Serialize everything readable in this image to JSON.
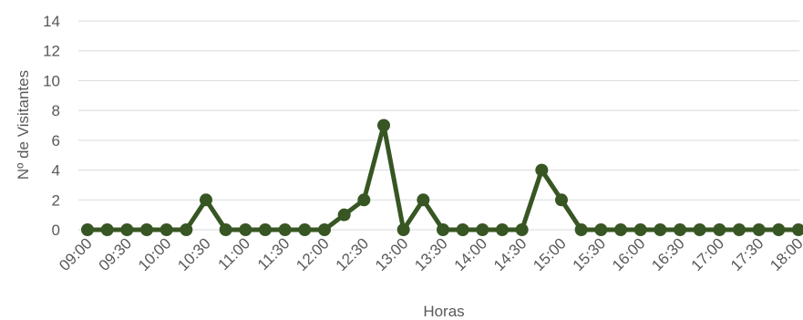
{
  "chart_data": {
    "type": "line",
    "title": "",
    "xlabel": "Horas",
    "ylabel": "Nº de Visitantes",
    "ylim": [
      0,
      14
    ],
    "yticks": [
      0,
      2,
      4,
      6,
      8,
      10,
      12,
      14
    ],
    "grid": true,
    "legend": "none",
    "series_color": "#375623",
    "categories": [
      "09:00",
      "09:15",
      "09:30",
      "09:45",
      "10:00",
      "10:15",
      "10:30",
      "10:45",
      "11:00",
      "11:15",
      "11:30",
      "11:45",
      "12:00",
      "12:15",
      "12:30",
      "12:45",
      "13:00",
      "13:15",
      "13:30",
      "13:45",
      "14:00",
      "14:15",
      "14:30",
      "14:45",
      "15:00",
      "15:15",
      "15:30",
      "15:45",
      "16:00",
      "16:15",
      "16:30",
      "16:45",
      "17:00",
      "17:15",
      "17:30",
      "17:45",
      "18:00"
    ],
    "tick_labels": [
      "09:00",
      "09:30",
      "10:00",
      "10:30",
      "11:00",
      "11:30",
      "12:00",
      "12:30",
      "13:00",
      "13:30",
      "14:00",
      "14:30",
      "15:00",
      "15:30",
      "16:00",
      "16:30",
      "17:00",
      "17:30",
      "18:00"
    ],
    "series": [
      {
        "values": [
          0,
          0,
          0,
          0,
          0,
          0,
          2,
          0,
          0,
          0,
          0,
          0,
          0,
          1,
          2,
          7,
          0,
          2,
          0,
          0,
          0,
          0,
          0,
          4,
          2,
          0,
          0,
          0,
          0,
          0,
          0,
          0,
          0,
          0,
          0,
          0,
          0
        ]
      }
    ]
  }
}
